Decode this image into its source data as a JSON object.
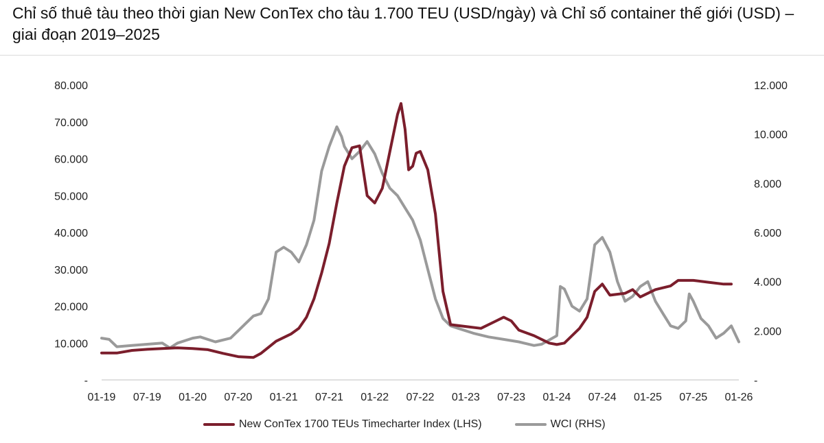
{
  "page": {
    "title": "Chỉ số thuê tàu theo thời gian New ConTex cho tàu 1.700 TEU (USD/ngày) và Chỉ số container thế giới (USD) – giai đoạn 2019–2025"
  },
  "chart_data": {
    "type": "line",
    "x_ticks": [
      "01-19",
      "07-19",
      "01-20",
      "07-20",
      "01-21",
      "07-21",
      "01-22",
      "07-22",
      "01-23",
      "07-23",
      "01-24",
      "07-24",
      "01-25",
      "07-25",
      "01-26"
    ],
    "x_range": [
      "2019-01",
      "2026-01"
    ],
    "y_left": {
      "range": [
        0,
        80000
      ],
      "ticks": [
        "-",
        "10.000",
        "20.000",
        "30.000",
        "40.000",
        "50.000",
        "60.000",
        "70.000",
        "80.000"
      ]
    },
    "y_right": {
      "range": [
        0,
        12000
      ],
      "ticks": [
        "-",
        "2.000",
        "4.000",
        "6.000",
        "8.000",
        "10.000",
        "12.000"
      ]
    },
    "grid": false,
    "legend_position": "bottom",
    "series": [
      {
        "name": "New ConTex 1700 TEUs Timecharter Index (LHS)",
        "axis": "left",
        "color": "#7b1e2c",
        "points": [
          [
            "2019-01",
            7300
          ],
          [
            "2019-03",
            7300
          ],
          [
            "2019-05",
            8000
          ],
          [
            "2019-07",
            8300
          ],
          [
            "2019-09",
            8500
          ],
          [
            "2019-11",
            8700
          ],
          [
            "2020-01",
            8500
          ],
          [
            "2020-03",
            8200
          ],
          [
            "2020-05",
            7200
          ],
          [
            "2020-07",
            6300
          ],
          [
            "2020-09",
            6100
          ],
          [
            "2020-10",
            7200
          ],
          [
            "2020-12",
            10500
          ],
          [
            "2021-02",
            12500
          ],
          [
            "2021-03",
            14000
          ],
          [
            "2021-04",
            17000
          ],
          [
            "2021-05",
            22000
          ],
          [
            "2021-06",
            29000
          ],
          [
            "2021-07",
            37000
          ],
          [
            "2021-08",
            48000
          ],
          [
            "2021-09",
            58000
          ],
          [
            "2021-10",
            63000
          ],
          [
            "2021-11",
            63500
          ],
          [
            "2021-12",
            50000
          ],
          [
            "2022-01",
            48000
          ],
          [
            "2022-02",
            52000
          ],
          [
            "2022-03",
            62000
          ],
          [
            "2022-04",
            72000
          ],
          [
            "2022-04-15",
            75000
          ],
          [
            "2022-05",
            68000
          ],
          [
            "2022-05-15",
            57000
          ],
          [
            "2022-06",
            58000
          ],
          [
            "2022-06-15",
            61500
          ],
          [
            "2022-07",
            62000
          ],
          [
            "2022-08",
            57000
          ],
          [
            "2022-09",
            45000
          ],
          [
            "2022-10",
            24000
          ],
          [
            "2022-11",
            15000
          ],
          [
            "2023-01",
            14500
          ],
          [
            "2023-03",
            14000
          ],
          [
            "2023-05",
            16000
          ],
          [
            "2023-06",
            17000
          ],
          [
            "2023-07",
            16000
          ],
          [
            "2023-08",
            13500
          ],
          [
            "2023-10",
            12000
          ],
          [
            "2023-12",
            10000
          ],
          [
            "2024-01",
            9600
          ],
          [
            "2024-02",
            10000
          ],
          [
            "2024-03",
            12000
          ],
          [
            "2024-04",
            14000
          ],
          [
            "2024-05",
            17000
          ],
          [
            "2024-06",
            24000
          ],
          [
            "2024-07",
            26000
          ],
          [
            "2024-08",
            23000
          ],
          [
            "2024-10",
            23500
          ],
          [
            "2024-11",
            24500
          ],
          [
            "2024-12",
            22500
          ],
          [
            "2025-02",
            24500
          ],
          [
            "2025-04",
            25500
          ],
          [
            "2025-05",
            27000
          ],
          [
            "2025-07",
            27000
          ],
          [
            "2025-09",
            26500
          ],
          [
            "2025-11",
            26000
          ],
          [
            "2025-12",
            26000
          ]
        ]
      },
      {
        "name": "WCI (RHS)",
        "axis": "right",
        "color": "#9a9a9a",
        "points": [
          [
            "2019-01",
            1700
          ],
          [
            "2019-02",
            1650
          ],
          [
            "2019-03",
            1350
          ],
          [
            "2019-05",
            1400
          ],
          [
            "2019-07",
            1450
          ],
          [
            "2019-09",
            1500
          ],
          [
            "2019-10",
            1300
          ],
          [
            "2019-11",
            1500
          ],
          [
            "2020-01",
            1700
          ],
          [
            "2020-02",
            1750
          ],
          [
            "2020-04",
            1550
          ],
          [
            "2020-06",
            1700
          ],
          [
            "2020-07",
            2000
          ],
          [
            "2020-08",
            2300
          ],
          [
            "2020-09",
            2600
          ],
          [
            "2020-10",
            2700
          ],
          [
            "2020-11",
            3300
          ],
          [
            "2020-12",
            5200
          ],
          [
            "2021-01",
            5400
          ],
          [
            "2021-02",
            5200
          ],
          [
            "2021-03",
            4800
          ],
          [
            "2021-04",
            5500
          ],
          [
            "2021-05",
            6500
          ],
          [
            "2021-06",
            8500
          ],
          [
            "2021-07",
            9500
          ],
          [
            "2021-08",
            10300
          ],
          [
            "2021-08-20",
            9900
          ],
          [
            "2021-09",
            9500
          ],
          [
            "2021-10",
            9000
          ],
          [
            "2021-11",
            9300
          ],
          [
            "2021-12",
            9700
          ],
          [
            "2022-01",
            9200
          ],
          [
            "2022-02",
            8400
          ],
          [
            "2022-03",
            7800
          ],
          [
            "2022-04",
            7500
          ],
          [
            "2022-05",
            7000
          ],
          [
            "2022-06",
            6500
          ],
          [
            "2022-07",
            5700
          ],
          [
            "2022-08",
            4500
          ],
          [
            "2022-09",
            3300
          ],
          [
            "2022-10",
            2500
          ],
          [
            "2022-11",
            2200
          ],
          [
            "2022-12",
            2100
          ],
          [
            "2023-02",
            1900
          ],
          [
            "2023-04",
            1750
          ],
          [
            "2023-06",
            1650
          ],
          [
            "2023-08",
            1550
          ],
          [
            "2023-10",
            1400
          ],
          [
            "2023-11",
            1450
          ],
          [
            "2024-01",
            1800
          ],
          [
            "2024-01-15",
            3800
          ],
          [
            "2024-02",
            3700
          ],
          [
            "2024-03",
            3000
          ],
          [
            "2024-04",
            2800
          ],
          [
            "2024-05",
            3300
          ],
          [
            "2024-06",
            5500
          ],
          [
            "2024-07",
            5800
          ],
          [
            "2024-08",
            5200
          ],
          [
            "2024-09",
            4000
          ],
          [
            "2024-10",
            3200
          ],
          [
            "2024-11",
            3400
          ],
          [
            "2024-12",
            3800
          ],
          [
            "2025-01",
            4000
          ],
          [
            "2025-02",
            3200
          ],
          [
            "2025-03",
            2700
          ],
          [
            "2025-04",
            2200
          ],
          [
            "2025-05",
            2100
          ],
          [
            "2025-06",
            2400
          ],
          [
            "2025-06-15",
            3500
          ],
          [
            "2025-07",
            3200
          ],
          [
            "2025-08",
            2500
          ],
          [
            "2025-09",
            2200
          ],
          [
            "2025-10",
            1700
          ],
          [
            "2025-11",
            1900
          ],
          [
            "2025-12",
            2200
          ],
          [
            "2026-01",
            1550
          ]
        ]
      }
    ]
  }
}
